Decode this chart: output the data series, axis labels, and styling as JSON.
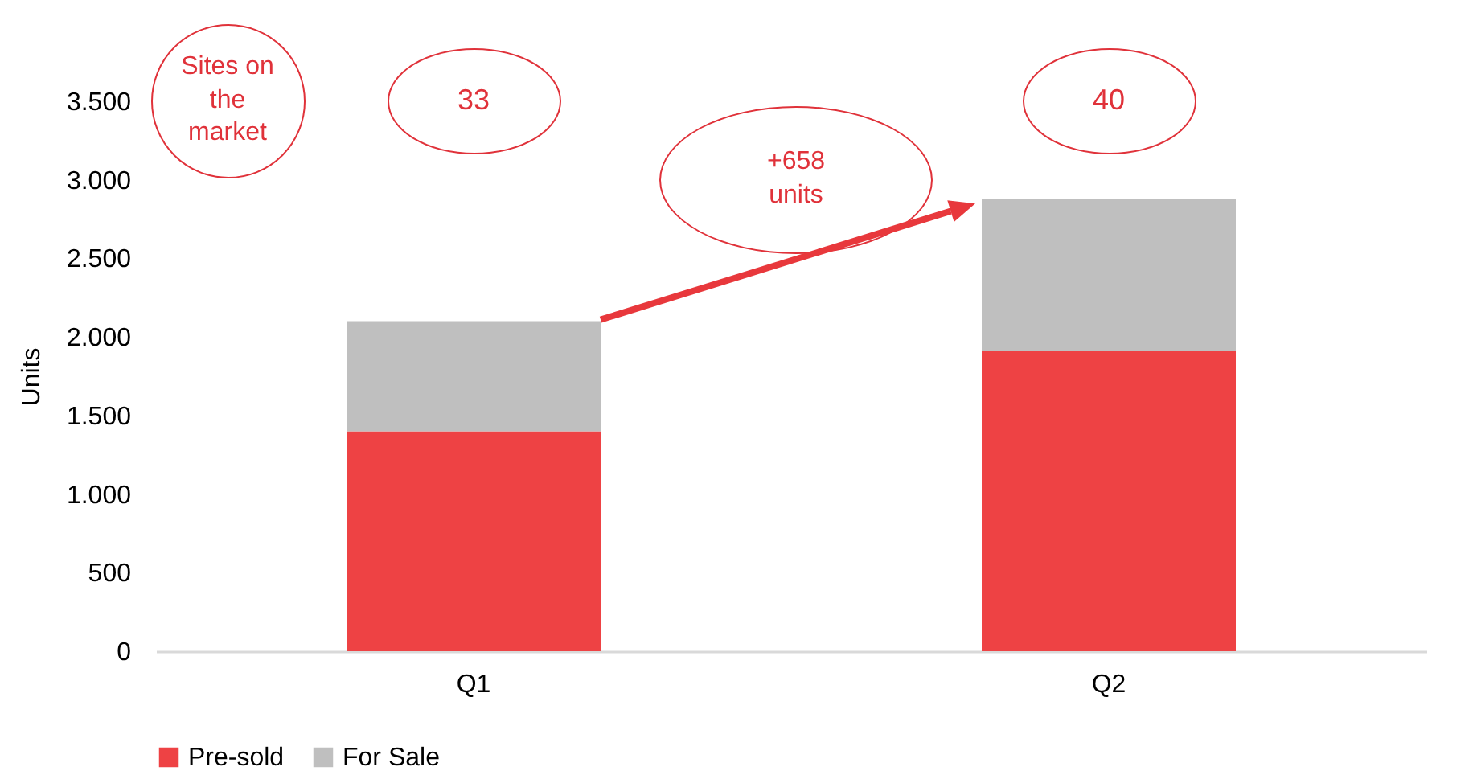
{
  "chart_data": {
    "type": "bar",
    "stacked": true,
    "ylabel": "Units",
    "categories": [
      "Q1",
      "Q2"
    ],
    "series": [
      {
        "name": "Pre-sold",
        "color": "#ee4244",
        "values": [
          1400,
          1910
        ]
      },
      {
        "name": "For Sale",
        "color": "#bfbfbf",
        "values": [
          700,
          970
        ]
      }
    ],
    "ylim": [
      0,
      3500
    ],
    "yticks": [
      0,
      {
        "value": 500,
        "label": "500"
      },
      {
        "value": 1000,
        "label": "1.000"
      },
      {
        "value": 1500,
        "label": "1.500"
      },
      {
        "value": 2000,
        "label": "2.000"
      },
      {
        "value": 2500,
        "label": "2.500"
      },
      {
        "value": 3000,
        "label": "3.000"
      },
      {
        "value": 3500,
        "label": "3.500"
      }
    ],
    "grid": false,
    "legend": "bottom",
    "annotations": [
      "Sites on the market",
      "33",
      "40",
      "+658 units"
    ]
  }
}
